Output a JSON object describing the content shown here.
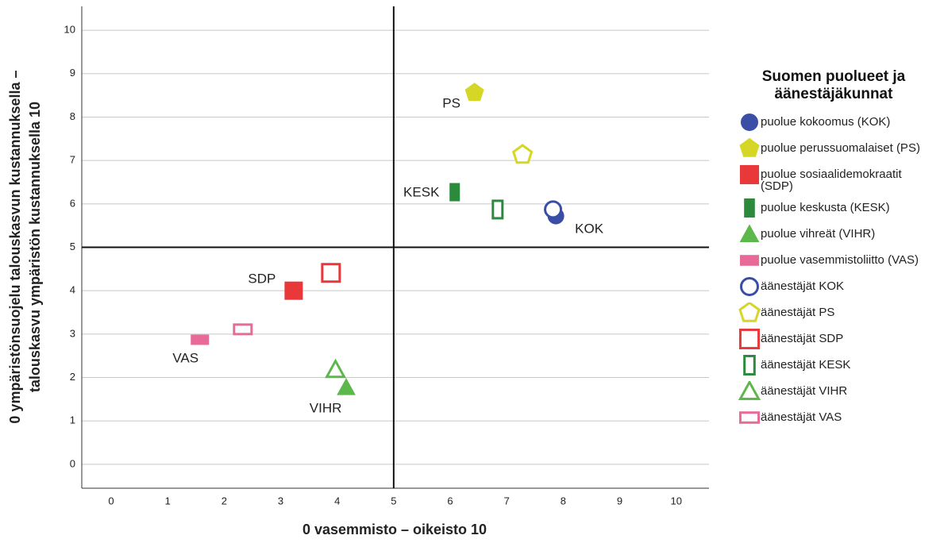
{
  "chart_data": {
    "type": "scatter",
    "xlabel": "0 vasemmisto – oikeisto 10",
    "ylabel": [
      "0 ympäristönsuojelu talouskasvun kustannuksella –",
      "talouskasvu ympäristön kustannuksella 10"
    ],
    "xlim": [
      -0.52,
      10.58
    ],
    "ylim": [
      -0.55,
      10.55
    ],
    "xticks": [
      0,
      1,
      2,
      3,
      4,
      5,
      6,
      7,
      8,
      9,
      10
    ],
    "yticks": [
      0,
      1,
      2,
      3,
      4,
      5,
      6,
      7,
      8,
      9,
      10
    ],
    "grid": true,
    "xref": 5,
    "yref": 5,
    "legend_title": "Suomen puolueet ja äänestäjäkunnat",
    "legend": "right",
    "series": [
      {
        "name": "puolue kokoomus (KOK)",
        "label": "KOK",
        "color": "#3b4ea6",
        "marker": "circle",
        "filled": true,
        "x": [
          7.87
        ],
        "values": [
          5.72
        ]
      },
      {
        "name": "puolue perussuomalaiset (PS)",
        "label": "PS",
        "color": "#d6d627",
        "marker": "pentagon",
        "filled": true,
        "x": [
          6.43
        ],
        "values": [
          8.56
        ]
      },
      {
        "name": "puolue sosiaalidemokraatit (SDP)",
        "label": "SDP",
        "color": "#e8383a",
        "marker": "square",
        "filled": true,
        "x": [
          3.23
        ],
        "values": [
          4.0
        ]
      },
      {
        "name": "puolue keskusta (KESK)",
        "label": "KESK",
        "color": "#2b8a3b",
        "marker": "bar-v",
        "filled": true,
        "x": [
          6.08
        ],
        "values": [
          6.27
        ]
      },
      {
        "name": "puolue vihreät (VIHR)",
        "label": "VIHR",
        "color": "#5cb84a",
        "marker": "triangle",
        "filled": true,
        "x": [
          4.16
        ],
        "values": [
          1.77
        ]
      },
      {
        "name": "puolue vasemmistoliitto (VAS)",
        "label": "VAS",
        "color": "#e86a98",
        "marker": "bar-h",
        "filled": true,
        "x": [
          1.57
        ],
        "values": [
          2.87
        ]
      },
      {
        "name": "äänestäjät KOK",
        "color": "#3b4ea6",
        "marker": "circle",
        "filled": false,
        "x": [
          7.82
        ],
        "values": [
          5.87
        ]
      },
      {
        "name": "äänestäjät PS",
        "color": "#d6d627",
        "marker": "pentagon",
        "filled": false,
        "x": [
          7.28
        ],
        "values": [
          7.13
        ]
      },
      {
        "name": "äänestäjät SDP",
        "color": "#e8383a",
        "marker": "square",
        "filled": false,
        "x": [
          3.89
        ],
        "values": [
          4.41
        ]
      },
      {
        "name": "äänestäjät KESK",
        "color": "#2b8a3b",
        "marker": "bar-v",
        "filled": false,
        "x": [
          6.84
        ],
        "values": [
          5.87
        ]
      },
      {
        "name": "äänestäjät VIHR",
        "color": "#5cb84a",
        "marker": "triangle",
        "filled": false,
        "x": [
          3.97
        ],
        "values": [
          2.18
        ]
      },
      {
        "name": "äänestäjät VAS",
        "color": "#e86a98",
        "marker": "bar-h",
        "filled": false,
        "x": [
          2.33
        ],
        "values": [
          3.11
        ]
      }
    ]
  }
}
